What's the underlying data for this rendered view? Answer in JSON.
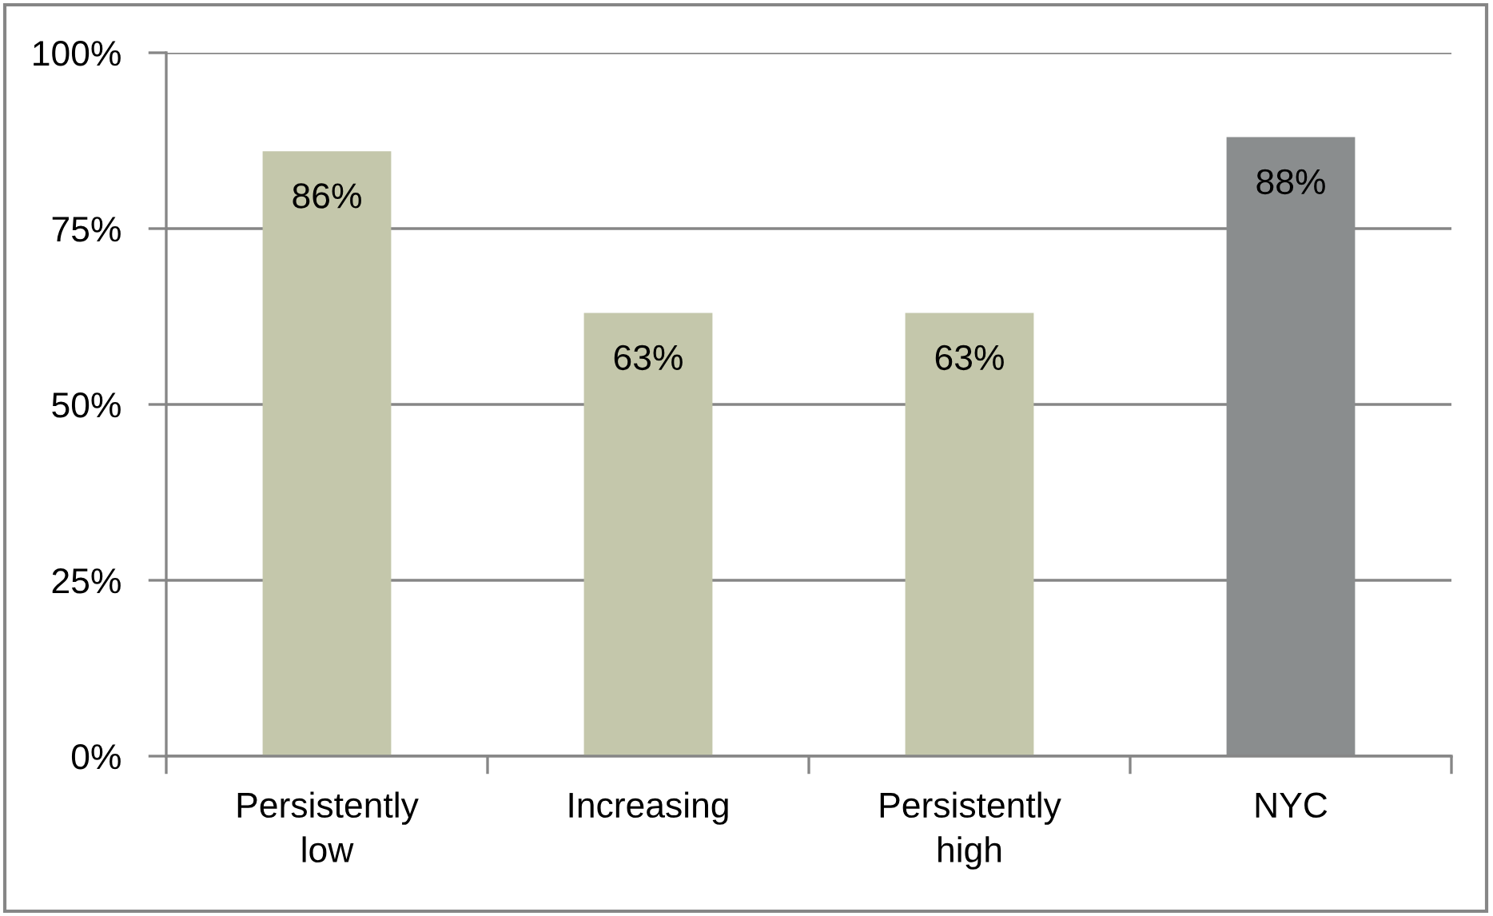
{
  "chart_data": {
    "type": "bar",
    "categories": [
      "Persistently low",
      "Increasing",
      "Persistently high",
      "NYC"
    ],
    "values": [
      86,
      63,
      63,
      88
    ],
    "colors": [
      "#c4c7ab",
      "#c4c7ab",
      "#c4c7ab",
      "#8a8d8e"
    ],
    "value_labels": [
      "86%",
      "63%",
      "63%",
      "88%"
    ],
    "ylim": [
      0,
      100
    ],
    "yticks": [
      {
        "value": 0,
        "label": "0%"
      },
      {
        "value": 25,
        "label": "25%"
      },
      {
        "value": 50,
        "label": "50%"
      },
      {
        "value": 75,
        "label": "75%"
      },
      {
        "value": 100,
        "label": "100%"
      }
    ],
    "grid": "y"
  }
}
